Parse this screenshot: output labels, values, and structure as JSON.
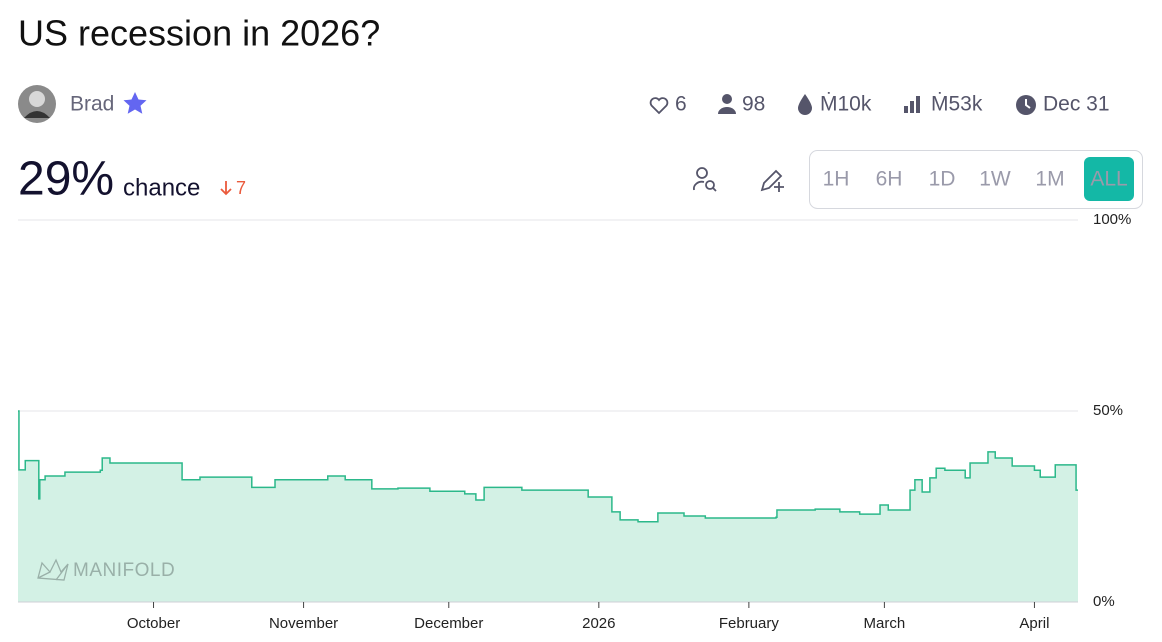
{
  "header": {
    "title": "US recession in 2026?",
    "creator": "Brad",
    "likes": "6",
    "traders": "98",
    "volume": "Ṁ10k",
    "liquidity": "Ṁ53k",
    "close_date": "Dec 31"
  },
  "probability": {
    "value": "29%",
    "label": "chance",
    "change": "7"
  },
  "time_ranges": [
    "1H",
    "6H",
    "1D",
    "1W",
    "1M",
    "ALL"
  ],
  "active_range": "ALL",
  "watermark": "MANIFOLD",
  "chart_data": {
    "type": "line",
    "step": true,
    "color": "#2bb88a",
    "fill_color": "#d3f1e5",
    "x": [
      0,
      0.2,
      1.5,
      4.3,
      4.5,
      5.6,
      9.7,
      17,
      17.4,
      19,
      33.9,
      37.6,
      48.3,
      53.1,
      64,
      67.6,
      73.1,
      78.5,
      85.1,
      92.3,
      94.6,
      96.3,
      104.1,
      117.8,
      122.7,
      124.4,
      128.1,
      132.2,
      137.6,
      142,
      156.6,
      156.8,
      164.7,
      169.8,
      173.9,
      178.1,
      179.8,
      184.3,
      185.3,
      186.8,
      188.4,
      189.7,
      191.5,
      195.7,
      196.7,
      200.4,
      201.9,
      205.4,
      210,
      211.2,
      214.3,
      218.6
    ],
    "values": [
      50,
      34.6,
      37,
      27,
      32,
      33,
      34,
      34.5,
      37.7,
      36.4,
      32,
      32.7,
      30,
      32,
      33,
      32,
      29.6,
      29.8,
      29,
      28.3,
      26.7,
      30,
      29.3,
      27.5,
      23.6,
      21.5,
      21,
      23.3,
      22.5,
      22,
      22.2,
      24.1,
      24.3,
      23.6,
      23,
      25.4,
      24.1,
      29.3,
      32,
      28.8,
      32.5,
      35,
      34.5,
      32.5,
      36.4,
      39.3,
      37.7,
      35.6,
      34.5,
      32.7,
      35.9,
      29.3
    ],
    "xlim": [
      0,
      219
    ],
    "xticks": [
      {
        "value": 28,
        "label": "October"
      },
      {
        "value": 59,
        "label": "November"
      },
      {
        "value": 89,
        "label": "December"
      },
      {
        "value": 120,
        "label": "2026"
      },
      {
        "value": 151,
        "label": "February"
      },
      {
        "value": 179,
        "label": "March"
      },
      {
        "value": 210,
        "label": "April"
      }
    ],
    "ylim": [
      0,
      100
    ],
    "yticks": [
      {
        "value": 0,
        "label": "0%"
      },
      {
        "value": 50,
        "label": "50%"
      },
      {
        "value": 100,
        "label": "100%"
      }
    ],
    "grid": true
  }
}
